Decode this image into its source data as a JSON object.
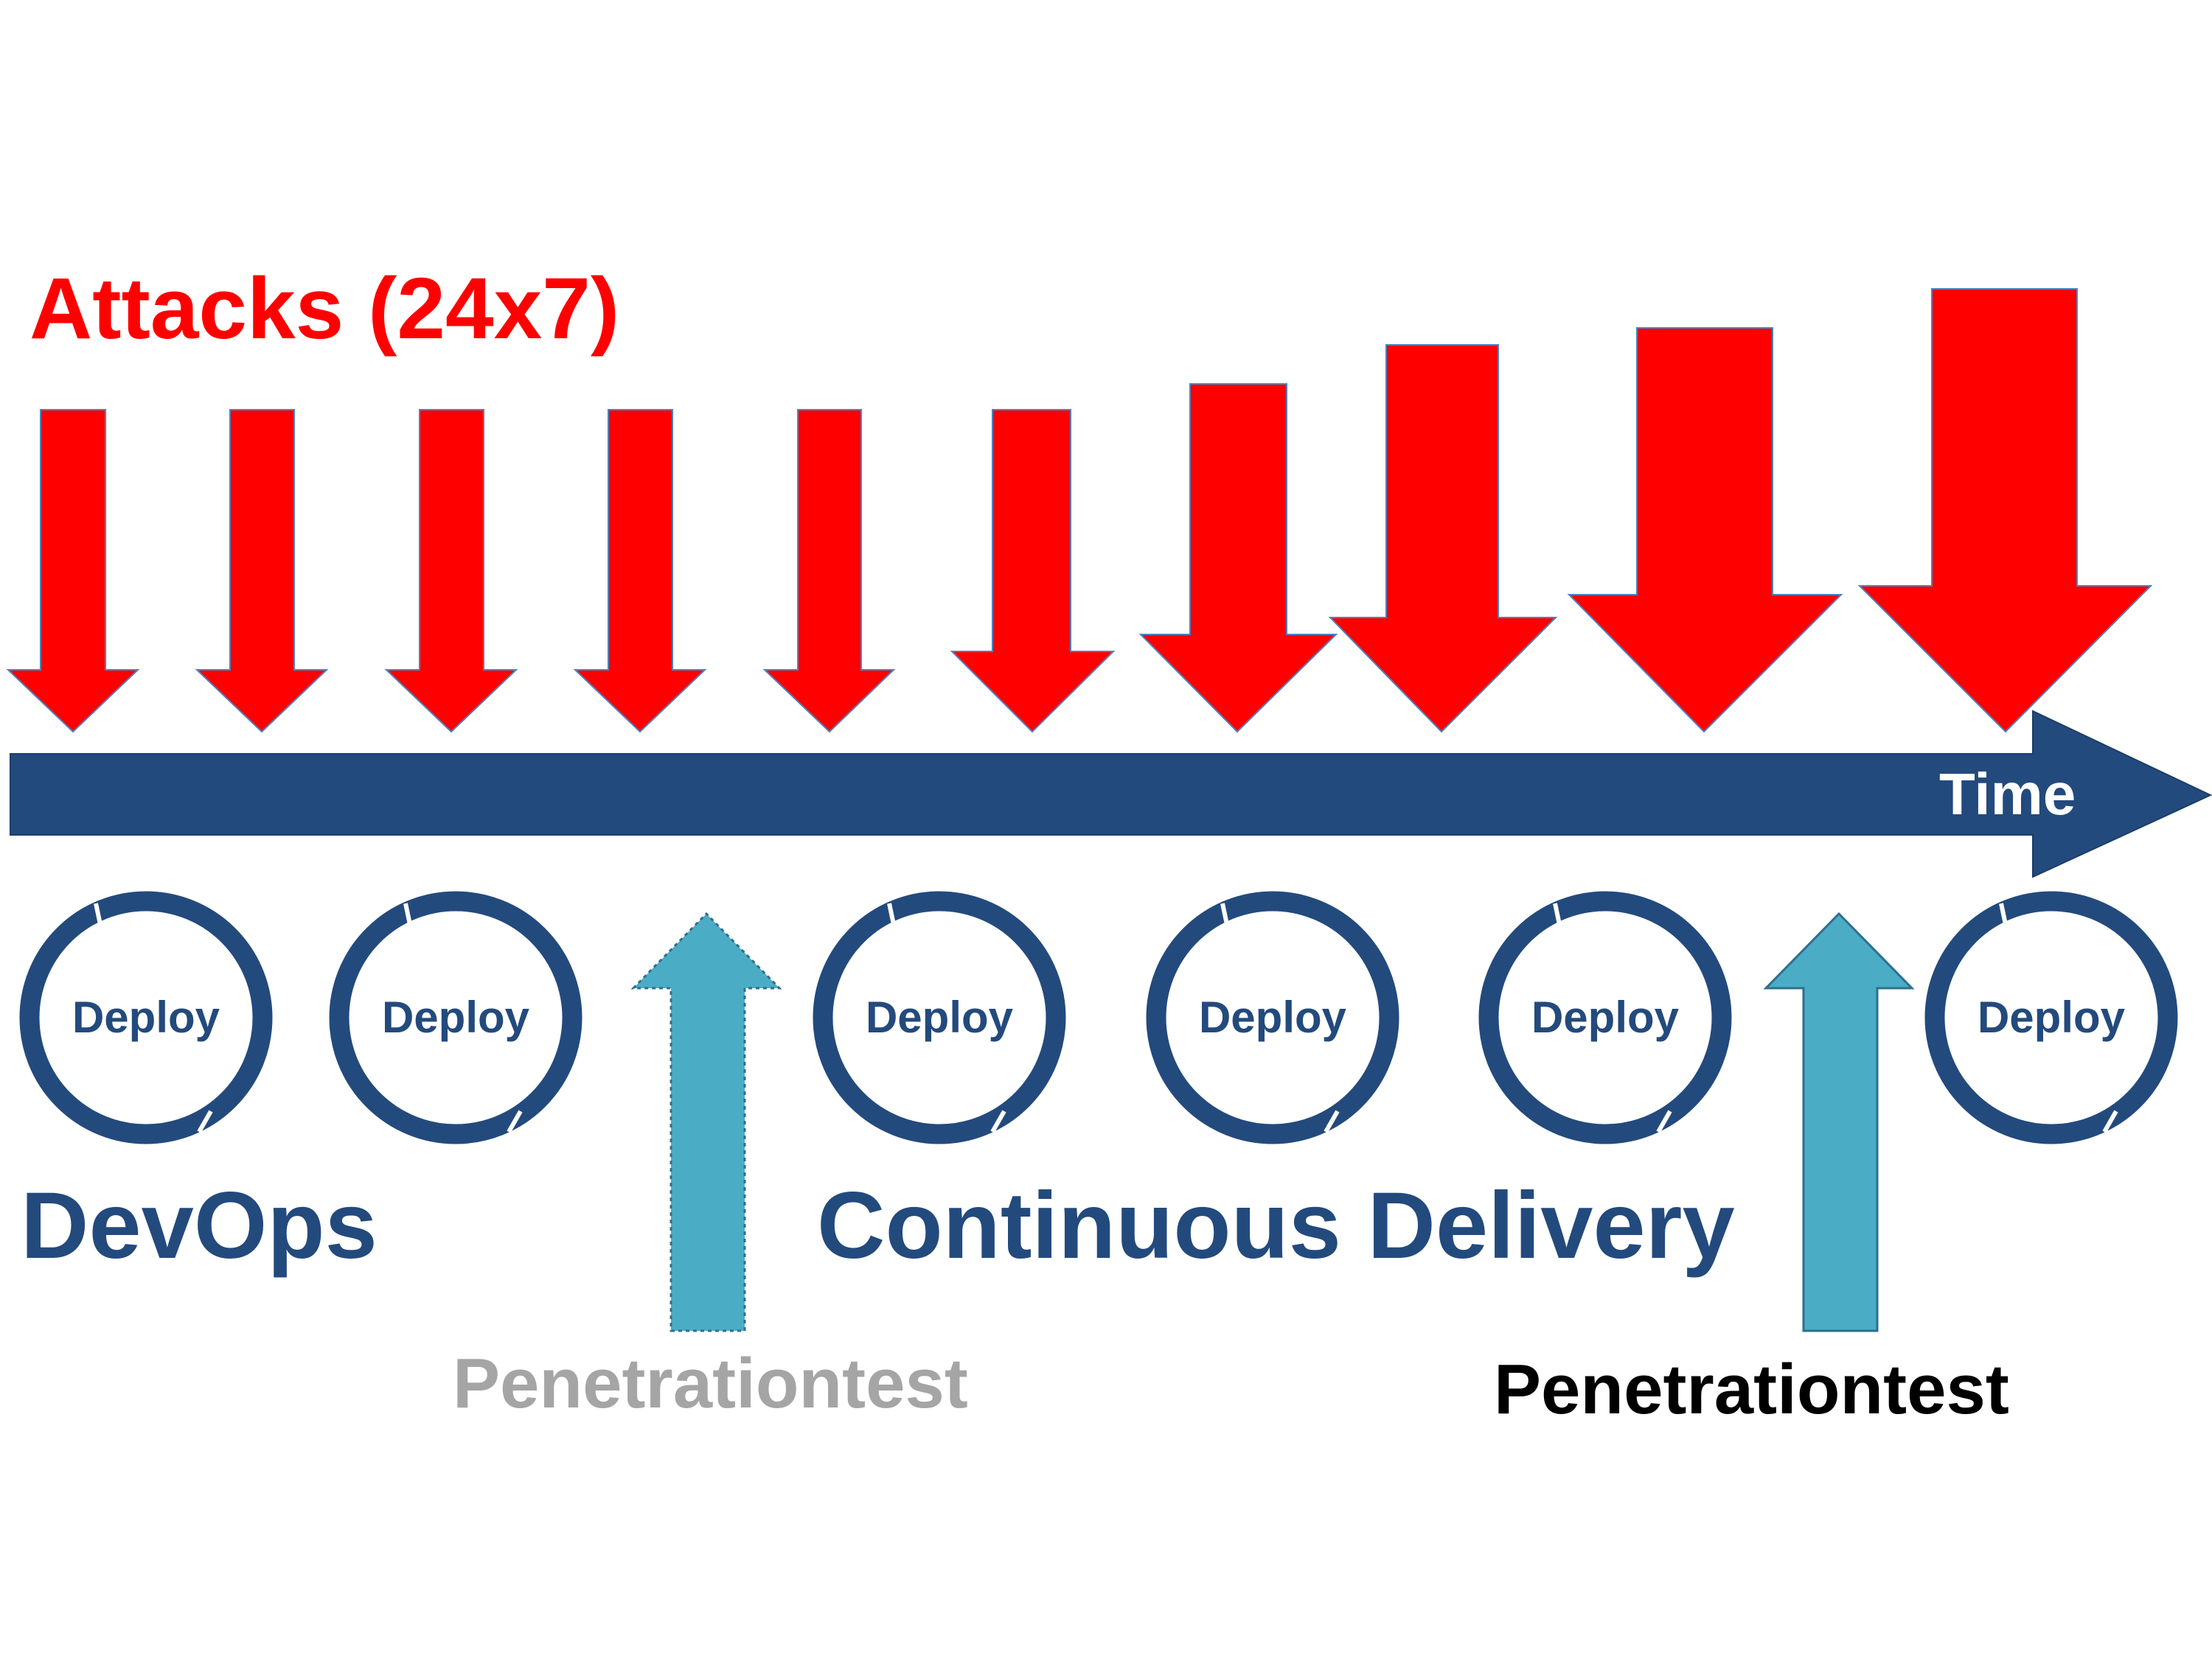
{
  "title": "Attacks (24x7)",
  "timeline_label": "Time",
  "deploy_label": "Deploy",
  "devops_label": "DevOps",
  "cd_label": "Continuous Delivery",
  "pentests": [
    {
      "label": "Penetrationtest",
      "style": "faded"
    },
    {
      "label": "Penetrationtest",
      "style": "solid"
    }
  ],
  "deploy_count": 6,
  "attack_arrow_count": 10,
  "colors": {
    "attack": "#ff0000",
    "timeline": "#234a7d",
    "pentest_arrow": "#4bacc6",
    "faded_text": "#a5a5a5",
    "solid_text": "#000000"
  },
  "icons": {
    "attack_arrow": "down-arrow-icon",
    "deploy_cycle": "cycle-ring-icon",
    "pentest_arrow": "up-arrow-icon",
    "timeline": "right-arrow-icon"
  }
}
